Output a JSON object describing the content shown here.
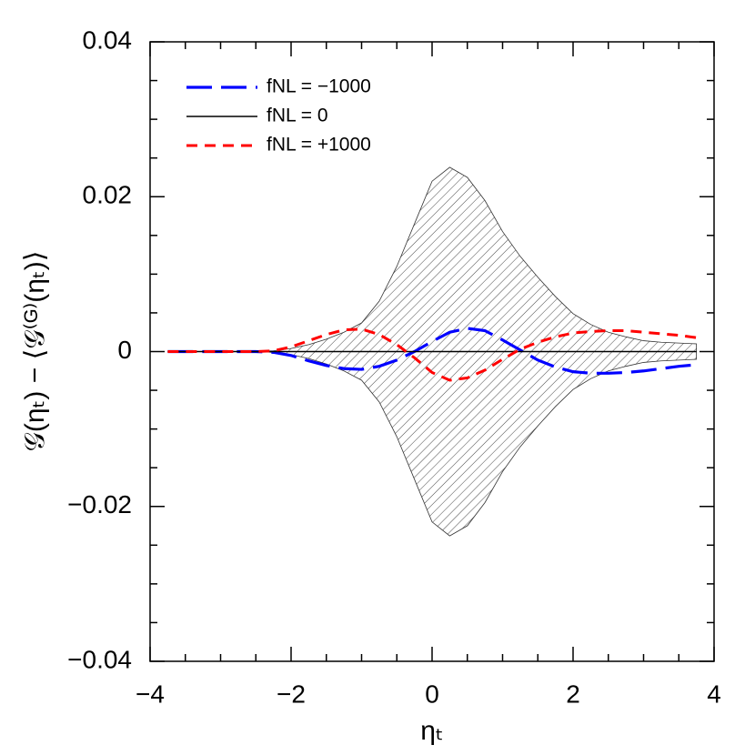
{
  "chart_data": {
    "type": "line",
    "xlabel": "ηₜ",
    "ylabel": "𝒢(ηₜ) − ⟨𝒢⁽ᴳ⁾(ηₜ)⟩",
    "x": [
      -3.75,
      -3.5,
      -3.25,
      -3,
      -2.75,
      -2.5,
      -2.25,
      -2,
      -1.75,
      -1.5,
      -1.25,
      -1,
      -0.75,
      -0.5,
      -0.25,
      0,
      0.25,
      0.5,
      0.75,
      1,
      1.25,
      1.5,
      1.75,
      2,
      2.25,
      2.5,
      2.75,
      3,
      3.25,
      3.5,
      3.75
    ],
    "band": {
      "color": "#333333",
      "upper": [
        0,
        0,
        0,
        0,
        0,
        0,
        0.0001,
        0.0004,
        0.0009,
        0.0016,
        0.0025,
        0.0037,
        0.0065,
        0.011,
        0.0165,
        0.022,
        0.0238,
        0.0225,
        0.0195,
        0.0155,
        0.0123,
        0.0096,
        0.0071,
        0.0049,
        0.0035,
        0.0025,
        0.0019,
        0.0014,
        0.0012,
        0.0011,
        0.001
      ],
      "lower": [
        0,
        0,
        0,
        0,
        0,
        0,
        -0.0001,
        -0.0004,
        -0.0009,
        -0.0016,
        -0.0025,
        -0.0037,
        -0.0065,
        -0.011,
        -0.0165,
        -0.022,
        -0.0238,
        -0.0225,
        -0.0195,
        -0.0155,
        -0.0123,
        -0.0096,
        -0.0071,
        -0.0049,
        -0.0035,
        -0.0025,
        -0.0019,
        -0.0014,
        -0.0012,
        -0.0011,
        -0.001
      ]
    },
    "series": [
      {
        "name": "fNL = −1000",
        "color": "#0000ff",
        "linestyle": "long-dash",
        "values": [
          0,
          0,
          0,
          0,
          0,
          0,
          -0.0001,
          -0.0005,
          -0.0012,
          -0.0018,
          -0.0022,
          -0.0023,
          -0.0019,
          -0.0011,
          0,
          0.0013,
          0.0025,
          0.003,
          0.0027,
          0.0015,
          0.0002,
          -0.0011,
          -0.002,
          -0.0026,
          -0.0028,
          -0.0028,
          -0.0027,
          -0.0025,
          -0.0022,
          -0.0019,
          -0.0017
        ]
      },
      {
        "name": "fNL = 0",
        "color": "#000000",
        "linestyle": "solid",
        "values": [
          0,
          0,
          0,
          0,
          0,
          0,
          0,
          0,
          0,
          0,
          0,
          0,
          0,
          0,
          0,
          0,
          0,
          0,
          0,
          0,
          0,
          0,
          0,
          0,
          0,
          0,
          0,
          0,
          0,
          0,
          0
        ]
      },
      {
        "name": "fNL = +1000",
        "color": "#ff0000",
        "linestyle": "dash",
        "values": [
          0,
          0,
          0,
          0,
          0,
          0,
          0.0001,
          0.0006,
          0.0014,
          0.0022,
          0.0028,
          0.0029,
          0.0022,
          0.0009,
          -0.0008,
          -0.0027,
          -0.0037,
          -0.0034,
          -0.0024,
          -0.001,
          0.0003,
          0.0012,
          0.0019,
          0.0024,
          0.0026,
          0.0027,
          0.0027,
          0.0025,
          0.0023,
          0.0021,
          0.0018
        ]
      }
    ],
    "xlim": [
      -4,
      4
    ],
    "ylim": [
      -0.04,
      0.04
    ],
    "xticks": [
      {
        "value": -4,
        "label": "−4"
      },
      {
        "value": -2,
        "label": "−2"
      },
      0,
      2,
      4
    ],
    "yticks": [
      {
        "value": -0.04,
        "label": "−0.04"
      },
      {
        "value": -0.02,
        "label": "−0.02"
      },
      0,
      0.02,
      0.04
    ],
    "xminorticks": [
      -3.5,
      -3,
      -2.5,
      -1.5,
      -1,
      -0.5,
      0.5,
      1,
      1.5,
      2.5,
      3,
      3.5
    ],
    "yminorticks": [
      -0.035,
      -0.03,
      -0.025,
      -0.015,
      -0.01,
      -0.005,
      0.005,
      0.01,
      0.015,
      0.025,
      0.03,
      0.035
    ],
    "legend": "upper left"
  }
}
